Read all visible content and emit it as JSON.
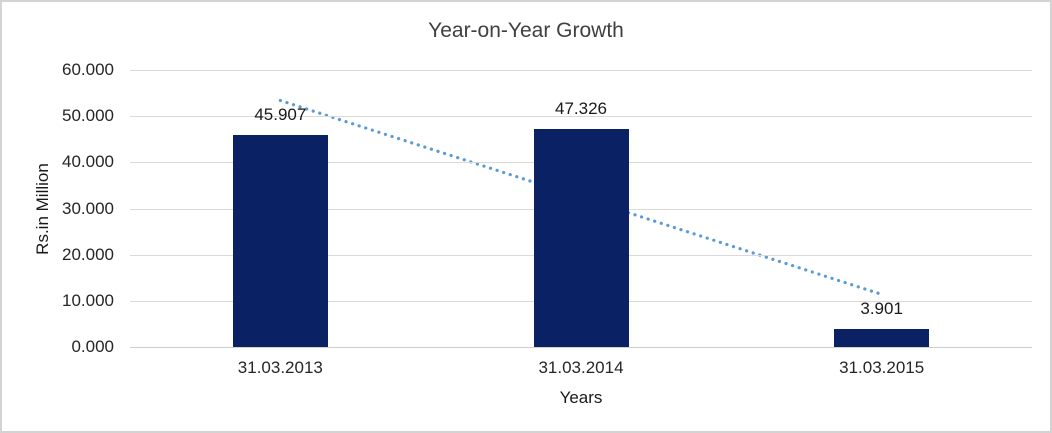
{
  "frame": {
    "background": "#ffffff",
    "border_color": "#d3d3d3"
  },
  "chart_data": {
    "type": "bar",
    "title": "Year-on-Year Growth",
    "xlabel": "Years",
    "ylabel": "Rs.in Million",
    "categories": [
      "31.03.2013",
      "31.03.2014",
      "31.03.2015"
    ],
    "values": [
      45.907,
      47.326,
      3.901
    ],
    "value_labels": [
      "45.907",
      "47.326",
      "3.901"
    ],
    "ylim": [
      0,
      60
    ],
    "ytick_step": 10,
    "ytick_labels": [
      "0.000",
      "10.000",
      "20.000",
      "30.000",
      "40.000",
      "50.000",
      "60.000"
    ],
    "grid": true,
    "legend": "none",
    "bar_color": "#0a2263",
    "gridline_color": "#d9d9d9",
    "trendline": {
      "type": "linear",
      "start_value": 53.4,
      "end_value": 11.4,
      "color": "#5b9bd5",
      "style": "dotted"
    }
  }
}
